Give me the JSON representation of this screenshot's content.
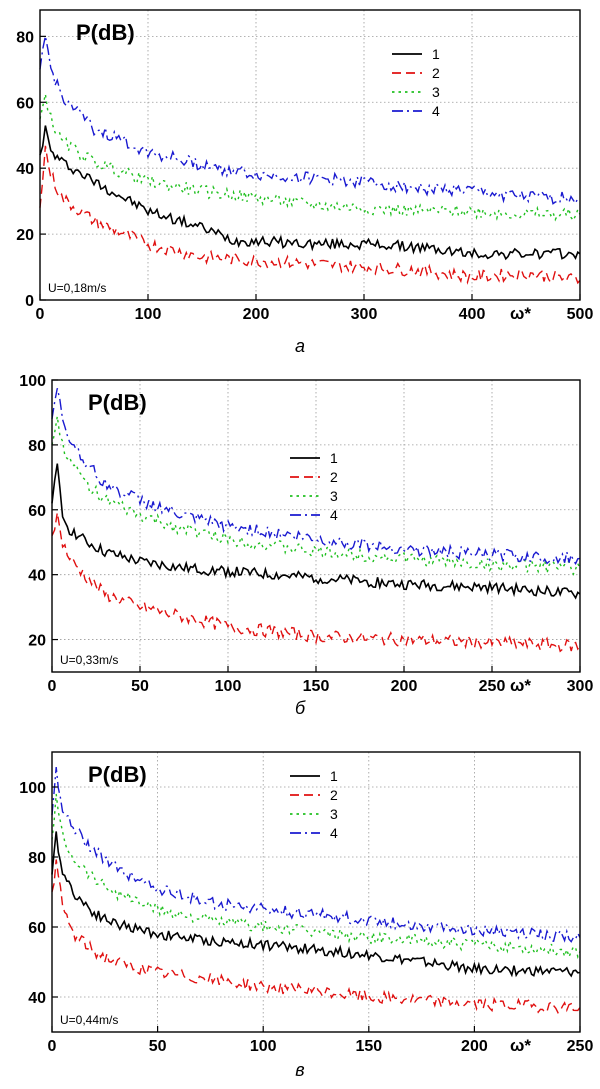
{
  "chart_data": [
    {
      "type": "line",
      "title": "P(dB)",
      "xlabel": "ω*",
      "ylabel": "",
      "annotation": "U=0,18m/s",
      "caption": "a",
      "xlim": [
        0,
        500
      ],
      "ylim": [
        0,
        88
      ],
      "xticks": [
        0,
        100,
        200,
        300,
        400,
        500
      ],
      "yticks": [
        0,
        20,
        40,
        60,
        80
      ],
      "grid": true,
      "legend_position": "top-right",
      "series": [
        {
          "name": "1",
          "color": "#000000",
          "dash": "solid",
          "x": [
            0,
            5,
            10,
            20,
            50,
            100,
            150,
            180,
            200,
            250,
            300,
            350,
            400,
            450,
            500
          ],
          "y": [
            44,
            52,
            45,
            42,
            36,
            27,
            22,
            18,
            18,
            17,
            17,
            16,
            14,
            14,
            14
          ]
        },
        {
          "name": "2",
          "color": "#e01010",
          "dash": "dashed",
          "x": [
            0,
            5,
            10,
            20,
            50,
            100,
            150,
            200,
            250,
            300,
            350,
            400,
            450,
            500
          ],
          "y": [
            28,
            46,
            38,
            31,
            24,
            17,
            13,
            12,
            11,
            10,
            9,
            7,
            8,
            6
          ]
        },
        {
          "name": "3",
          "color": "#20c020",
          "dash": "dotted",
          "x": [
            0,
            5,
            10,
            20,
            50,
            100,
            150,
            200,
            250,
            300,
            350,
            400,
            450,
            500
          ],
          "y": [
            55,
            62,
            55,
            48,
            42,
            36,
            33,
            31,
            29,
            28,
            27,
            27,
            26,
            26
          ]
        },
        {
          "name": "4",
          "color": "#1a1ad0",
          "dash": "dashdot",
          "x": [
            0,
            5,
            10,
            20,
            50,
            100,
            150,
            200,
            250,
            300,
            350,
            400,
            450,
            500
          ],
          "y": [
            70,
            80,
            70,
            62,
            52,
            45,
            41,
            38,
            37,
            36,
            34,
            33,
            31,
            31
          ]
        }
      ]
    },
    {
      "type": "line",
      "title": "P(dB)",
      "xlabel": "ω*",
      "ylabel": "",
      "annotation": "U=0,33m/s",
      "caption": "б",
      "xlim": [
        0,
        300
      ],
      "ylim": [
        10,
        100
      ],
      "xticks": [
        0,
        50,
        100,
        150,
        200,
        250,
        300
      ],
      "yticks": [
        20,
        40,
        60,
        80,
        100
      ],
      "grid": true,
      "legend_position": "right",
      "series": [
        {
          "name": "1",
          "color": "#000000",
          "dash": "solid",
          "x": [
            0,
            3,
            6,
            10,
            20,
            30,
            50,
            75,
            100,
            150,
            200,
            250,
            300
          ],
          "y": [
            62,
            73,
            58,
            54,
            50,
            47,
            44,
            42,
            41,
            39,
            37,
            36,
            34
          ]
        },
        {
          "name": "2",
          "color": "#e01010",
          "dash": "dashed",
          "x": [
            0,
            3,
            6,
            10,
            20,
            30,
            50,
            75,
            100,
            150,
            200,
            250,
            300
          ],
          "y": [
            52,
            58,
            50,
            45,
            39,
            34,
            30,
            27,
            24,
            21,
            20,
            19,
            18
          ]
        },
        {
          "name": "3",
          "color": "#20c020",
          "dash": "dotted",
          "x": [
            0,
            3,
            6,
            10,
            20,
            30,
            50,
            75,
            100,
            150,
            200,
            250,
            300
          ],
          "y": [
            80,
            88,
            80,
            75,
            68,
            63,
            58,
            54,
            51,
            47,
            45,
            43,
            42
          ]
        },
        {
          "name": "4",
          "color": "#1a1ad0",
          "dash": "dashdot",
          "x": [
            0,
            3,
            6,
            10,
            20,
            30,
            50,
            75,
            100,
            150,
            200,
            250,
            300
          ],
          "y": [
            88,
            97,
            88,
            82,
            74,
            68,
            63,
            58,
            55,
            51,
            48,
            46,
            45
          ]
        }
      ]
    },
    {
      "type": "line",
      "title": "P(dB)",
      "xlabel": "ω*",
      "ylabel": "",
      "annotation": "U=0,44m/s",
      "caption": "в",
      "xlim": [
        0,
        250
      ],
      "ylim": [
        30,
        110
      ],
      "xticks": [
        0,
        50,
        100,
        150,
        200,
        250
      ],
      "yticks": [
        40,
        60,
        80,
        100
      ],
      "grid": true,
      "legend_position": "top-right",
      "series": [
        {
          "name": "1",
          "color": "#000000",
          "dash": "solid",
          "x": [
            0,
            2,
            5,
            10,
            20,
            30,
            50,
            75,
            100,
            150,
            200,
            250
          ],
          "y": [
            75,
            86,
            76,
            70,
            64,
            61,
            58,
            56,
            55,
            52,
            48,
            47
          ]
        },
        {
          "name": "2",
          "color": "#e01010",
          "dash": "dashed",
          "x": [
            0,
            2,
            5,
            10,
            20,
            30,
            50,
            75,
            100,
            150,
            200,
            250
          ],
          "y": [
            70,
            78,
            66,
            58,
            53,
            50,
            47,
            45,
            43,
            40,
            38,
            37
          ]
        },
        {
          "name": "3",
          "color": "#20c020",
          "dash": "dotted",
          "x": [
            0,
            2,
            5,
            10,
            20,
            30,
            50,
            75,
            100,
            150,
            200,
            250
          ],
          "y": [
            85,
            97,
            86,
            80,
            74,
            70,
            65,
            62,
            60,
            57,
            55,
            53
          ]
        },
        {
          "name": "4",
          "color": "#1a1ad0",
          "dash": "dashdot",
          "x": [
            0,
            2,
            5,
            10,
            20,
            30,
            50,
            75,
            100,
            150,
            200,
            250
          ],
          "y": [
            92,
            105,
            94,
            88,
            82,
            77,
            71,
            67,
            65,
            62,
            59,
            57
          ]
        }
      ]
    }
  ]
}
